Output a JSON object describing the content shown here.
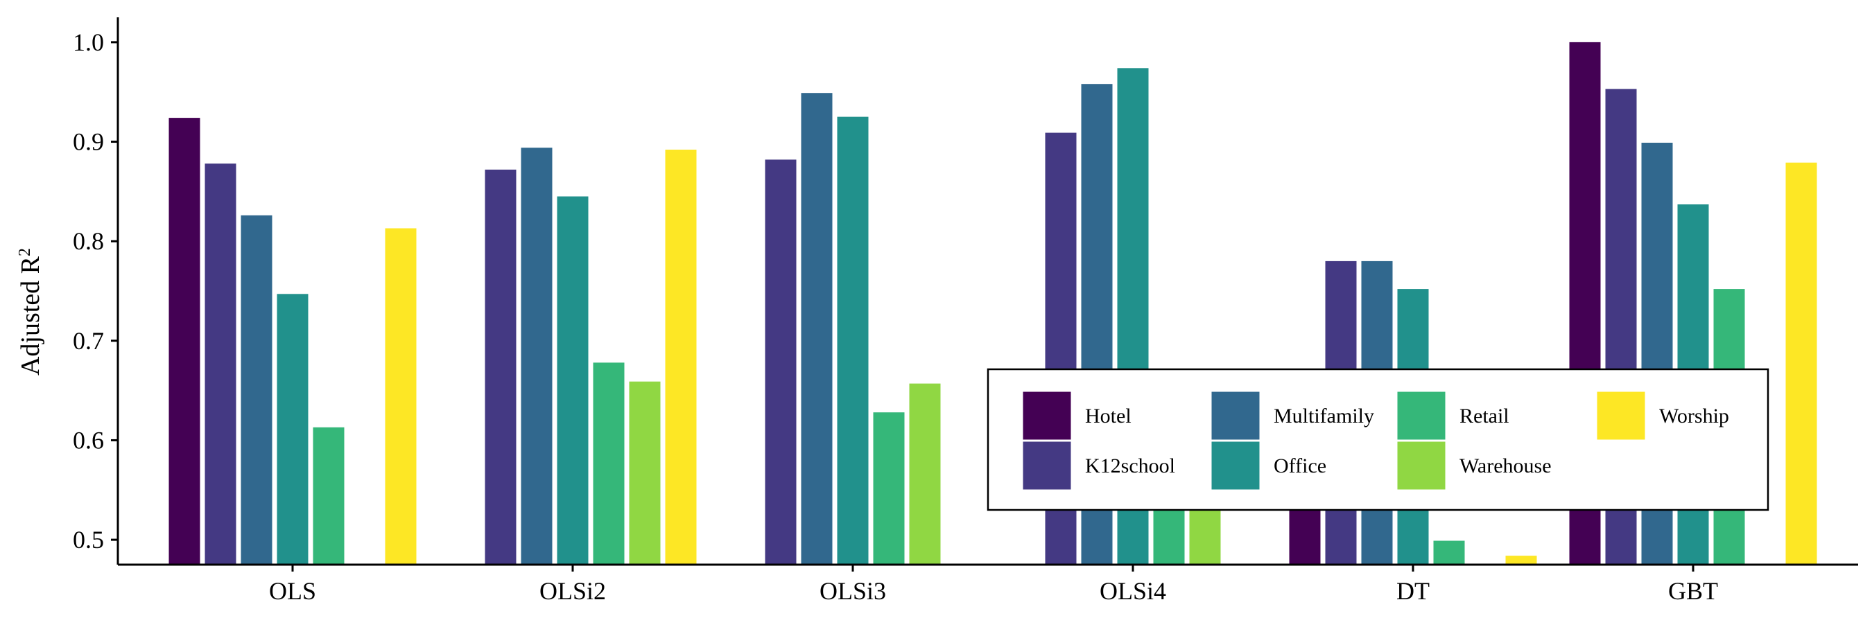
{
  "chart_data": {
    "type": "bar",
    "ylabel": "Adjusted R",
    "ylabel_superscript": "2",
    "xlabel": "",
    "ylim": [
      0.475,
      1.025
    ],
    "yticks": [
      "0.5",
      "0.6",
      "0.7",
      "0.8",
      "0.9",
      "1.0"
    ],
    "grid": false,
    "legend_position": "bottom-right",
    "categories": [
      "OLS",
      "OLSi2",
      "OLSi3",
      "OLSi4",
      "DT",
      "GBT"
    ],
    "series": [
      {
        "name": "Hotel",
        "color": "#440154",
        "values": [
          0.924,
          null,
          null,
          null,
          0.575,
          1.0
        ]
      },
      {
        "name": "K12school",
        "color": "#443983",
        "values": [
          0.878,
          0.872,
          0.882,
          0.909,
          0.78,
          0.953
        ]
      },
      {
        "name": "Multifamily",
        "color": "#31688e",
        "values": [
          0.826,
          0.894,
          0.949,
          0.958,
          0.78,
          0.899
        ]
      },
      {
        "name": "Office",
        "color": "#21918c",
        "values": [
          0.747,
          0.845,
          0.925,
          0.974,
          0.752,
          0.837
        ]
      },
      {
        "name": "Retail",
        "color": "#35b779",
        "values": [
          0.613,
          0.678,
          0.628,
          0.603,
          0.499,
          0.752
        ]
      },
      {
        "name": "Warehouse",
        "color": "#90d743",
        "values": [
          null,
          0.659,
          0.657,
          0.566,
          null,
          null
        ]
      },
      {
        "name": "Worship",
        "color": "#fde725",
        "values": [
          0.813,
          0.892,
          null,
          null,
          0.484,
          0.879
        ]
      }
    ]
  }
}
